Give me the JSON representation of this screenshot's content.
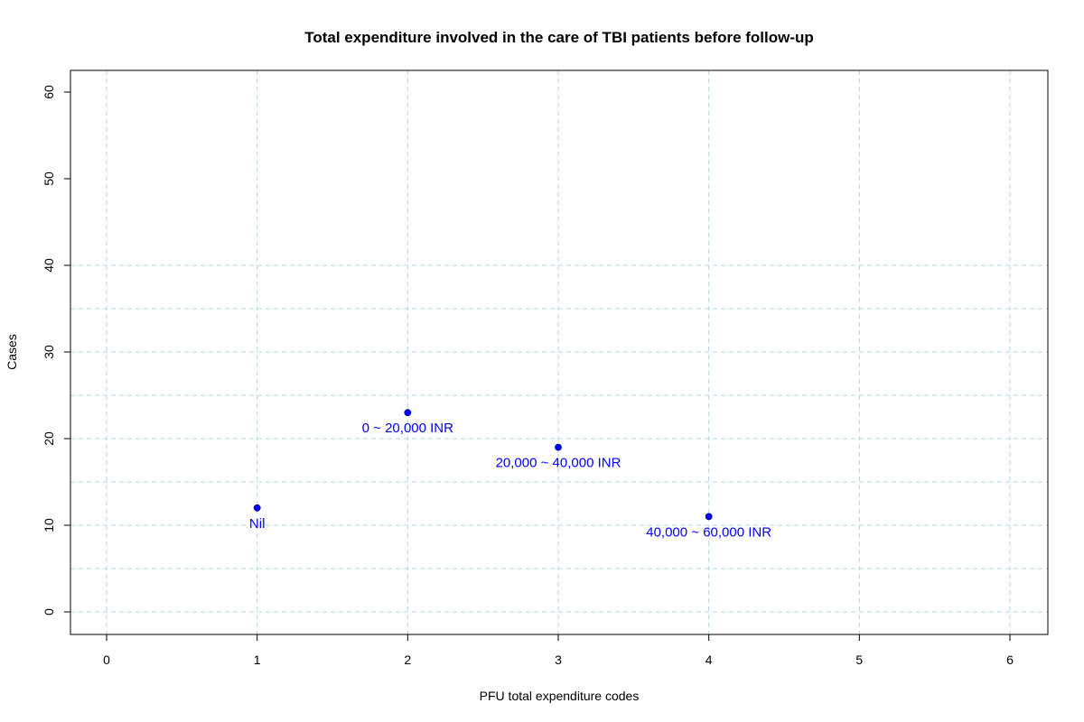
{
  "chart_data": {
    "type": "scatter",
    "title": "Total expenditure involved in the care of TBI patients before follow-up",
    "xlabel": "PFU total expenditure codes",
    "ylabel": "Cases",
    "xlim": [
      0,
      6
    ],
    "ylim": [
      0,
      60
    ],
    "x_ticks": [
      0,
      1,
      2,
      3,
      4,
      5,
      6
    ],
    "y_ticks": [
      0,
      10,
      20,
      30,
      40,
      50,
      60
    ],
    "x_gridlines": [
      0,
      1,
      2,
      3,
      4,
      5,
      6
    ],
    "y_gridlines": [
      0,
      5,
      10,
      15,
      20,
      25,
      30,
      35,
      40
    ],
    "grid": true,
    "series": [
      {
        "color": "#0000ff",
        "points": [
          {
            "x": 1,
            "y": 12,
            "label": "Nil"
          },
          {
            "x": 2,
            "y": 23,
            "label": "0 ~ 20,000 INR"
          },
          {
            "x": 3,
            "y": 19,
            "label": "20,000 ~ 40,000 INR"
          },
          {
            "x": 4,
            "y": 11,
            "label": "40,000 ~ 60,000 INR"
          }
        ]
      }
    ],
    "grid_color": "#add8e6"
  }
}
